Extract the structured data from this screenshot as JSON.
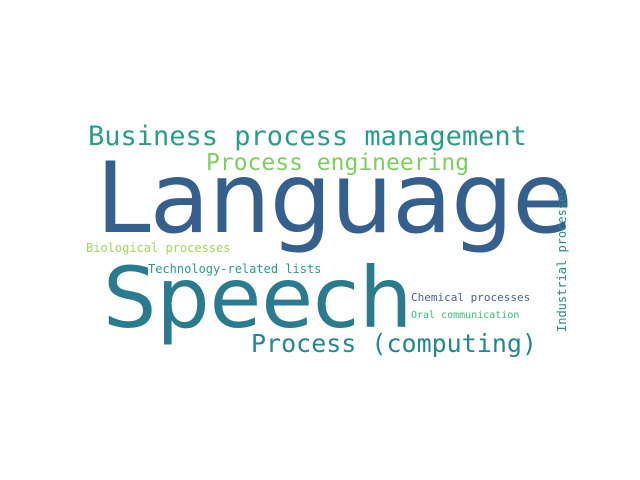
{
  "words": [
    {
      "text": "Language",
      "color": "#355f8d"
    },
    {
      "text": "Speech",
      "color": "#2a7b8e"
    },
    {
      "text": "Business process management",
      "color": "#2d9b8a"
    },
    {
      "text": "Process engineering",
      "color": "#7ccf5e"
    },
    {
      "text": "Process (computing)",
      "color": "#26868e"
    },
    {
      "text": "Biological processes",
      "color": "#a3d65a"
    },
    {
      "text": "Technology-related lists",
      "color": "#2e9a8c"
    },
    {
      "text": "Chemical processes",
      "color": "#4a5f8c"
    },
    {
      "text": "Oral communication",
      "color": "#3cb777"
    },
    {
      "text": "Industrial processes",
      "color": "#2b8a8c"
    }
  ]
}
